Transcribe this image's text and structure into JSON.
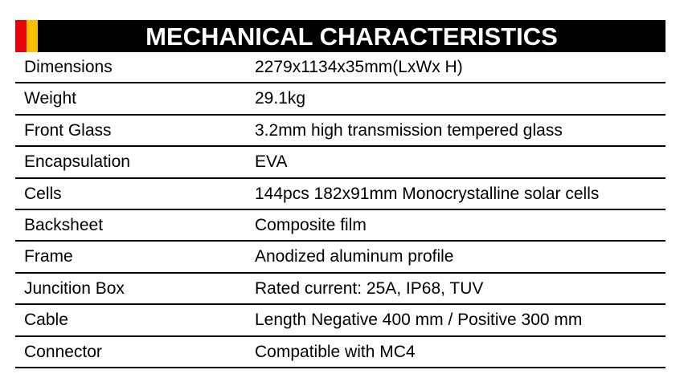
{
  "title": "MECHANICAL CHARACTERISTICS",
  "colors": {
    "stripe1": "#e8000b",
    "stripe2": "#f9c000",
    "header_bg": "#000000"
  },
  "rows": [
    {
      "label": "Dimensions",
      "value": "2279x1134x35mm(LxWx H)"
    },
    {
      "label": "Weight",
      "value": "29.1kg"
    },
    {
      "label": "Front Glass",
      "value": "3.2mm high transmission tempered glass"
    },
    {
      "label": "Encapsulation",
      "value": "EVA"
    },
    {
      "label": "Cells",
      "value": "144pcs 182x91mm Monocrystalline solar cells"
    },
    {
      "label": "Backsheet",
      "value": "Composite film"
    },
    {
      "label": "Frame",
      "value": "Anodized aluminum profile"
    },
    {
      "label": "Juncition Box",
      "value": "Rated current: 25A, IP68, TUV"
    },
    {
      "label": "Cable",
      "value": "Length Negative 400 mm / Positive 300 mm"
    },
    {
      "label": "Connector",
      "value": "Compatible with MC4"
    }
  ]
}
